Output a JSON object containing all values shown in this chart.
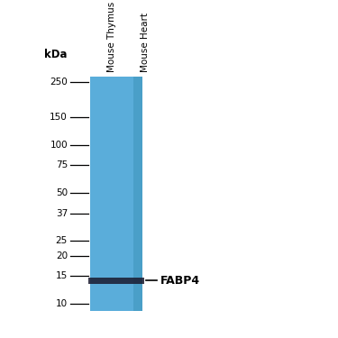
{
  "lane1_label": "Mouse Thymus",
  "lane2_label": "Mouse Heart",
  "kda_label": "kDa",
  "band_label": "FABP4",
  "marker_positions": [
    250,
    150,
    100,
    75,
    50,
    37,
    25,
    20,
    15,
    10
  ],
  "band_kda": 14,
  "lane_color": "#5aadda",
  "band_color": "#1a1a2e",
  "background_color": "#ffffff",
  "fig_width": 3.75,
  "fig_height": 3.75
}
